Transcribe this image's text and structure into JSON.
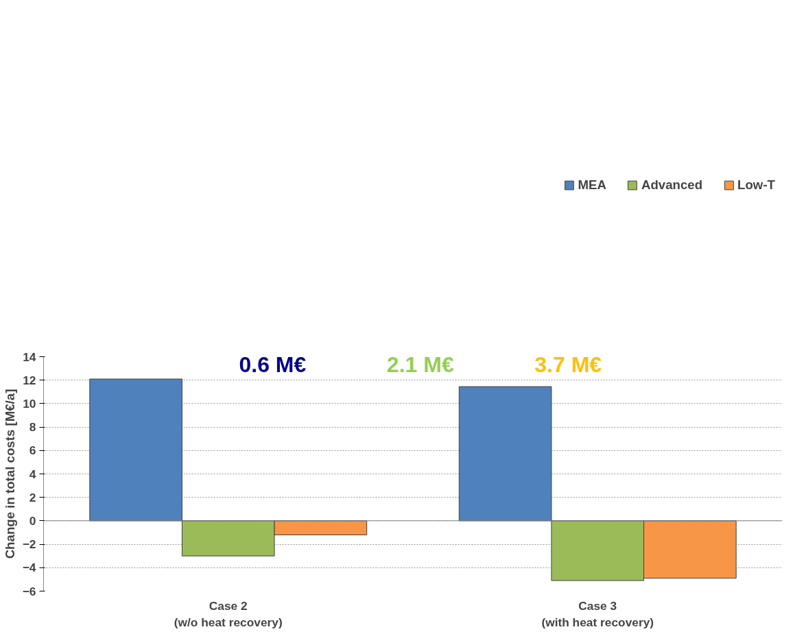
{
  "chart_data": {
    "type": "bar",
    "ylabel": "Change in total costs [M€/a]",
    "categories": [
      "Case 2\n(w/o heat recovery)",
      "Case 3\n(with heat recovery)"
    ],
    "series": [
      {
        "name": "MEA",
        "color": "#4f81bd",
        "values": [
          12.1,
          11.45
        ]
      },
      {
        "name": "Advanced",
        "color": "#9bbb59",
        "values": [
          -3.0,
          -5.1
        ]
      },
      {
        "name": "Low-T",
        "color": "#f79646",
        "values": [
          -1.2,
          -4.9
        ]
      }
    ],
    "ylim": [
      -6,
      14
    ],
    "yticks": [
      -6,
      -4,
      -2,
      0,
      2,
      4,
      6,
      8,
      10,
      12,
      14
    ],
    "grid": "y",
    "legend": "top",
    "annotations": [
      "0.6 M€",
      "2.1 M€",
      "3.7 M€"
    ]
  }
}
